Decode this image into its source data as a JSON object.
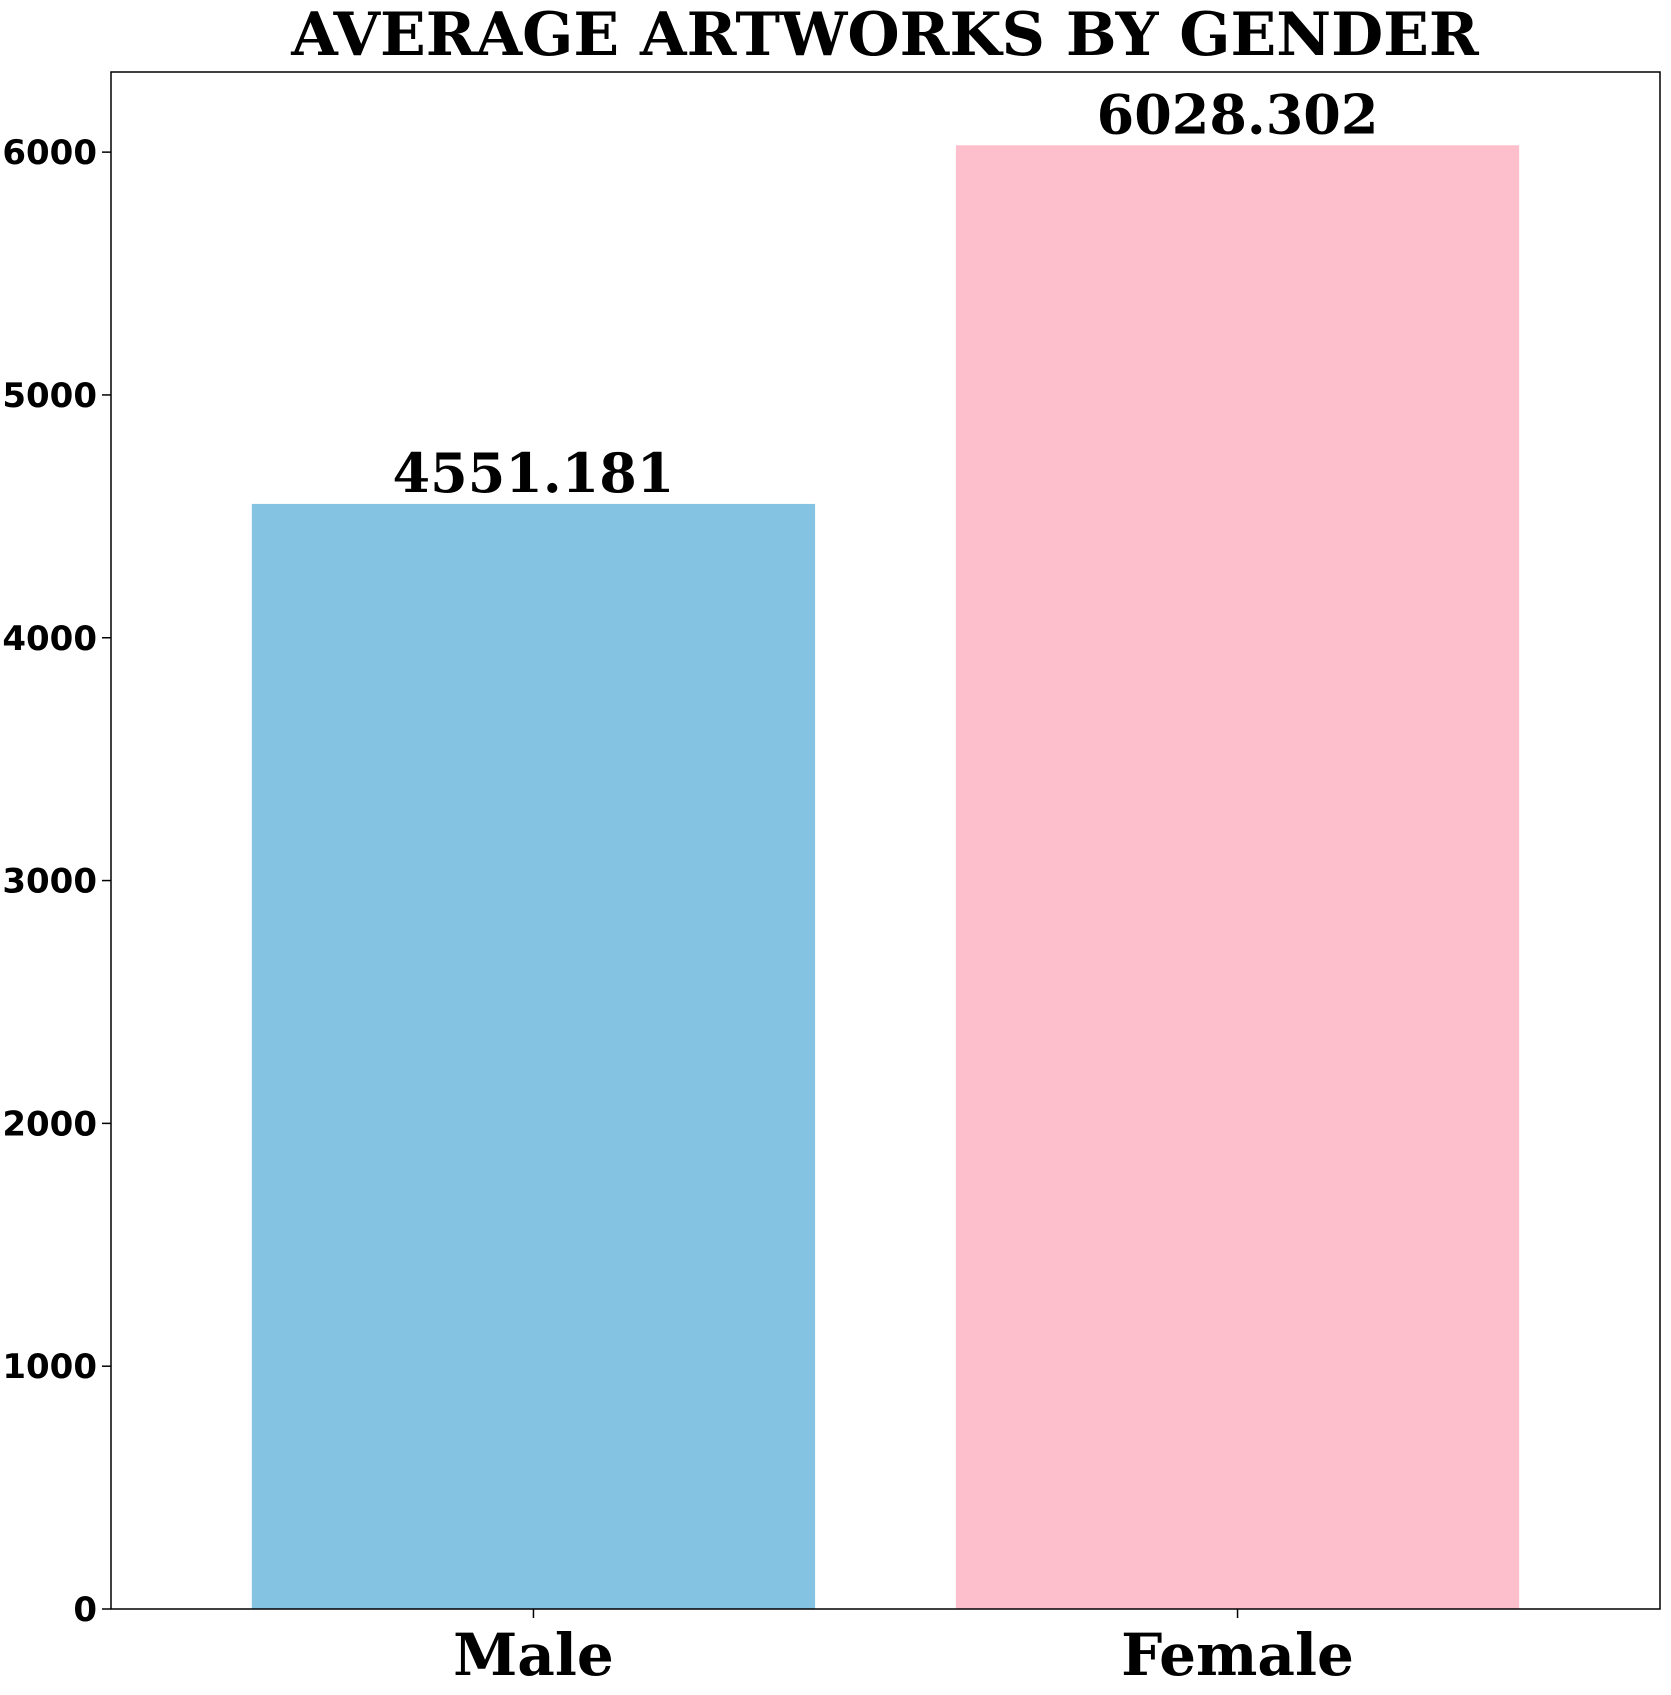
{
  "chart_data": {
    "type": "bar",
    "title": "AVERAGE ARTWORKS BY GENDER",
    "xlabel": "",
    "ylabel": "",
    "categories": [
      "Male",
      "Female"
    ],
    "values": [
      4551.181,
      6028.302
    ],
    "value_labels": [
      "4551.181",
      "6028.302"
    ],
    "colors": [
      "#85c3e3",
      "#fdbfcc"
    ],
    "ylim": [
      0,
      6330
    ],
    "yticks": [
      0,
      1000,
      2000,
      3000,
      4000,
      5000,
      6000
    ],
    "ytick_labels": [
      "0",
      "1000",
      "2000",
      "3000",
      "4000",
      "5000",
      "6000"
    ],
    "grid": false,
    "legend": "none"
  }
}
